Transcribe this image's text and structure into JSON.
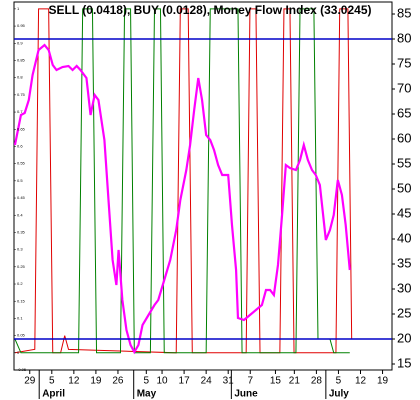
{
  "chart_data": {
    "type": "line",
    "title": "SELL (0.0418), BUY (0.0128), Money Flow Index (33.0245)",
    "xlim": [
      -5,
      115
    ],
    "xticks": [
      {
        "value": 0,
        "label": "29"
      },
      {
        "value": 7,
        "label": "5"
      },
      {
        "value": 14,
        "label": "12"
      },
      {
        "value": 21,
        "label": "19"
      },
      {
        "value": 28,
        "label": "26"
      },
      {
        "value": 37,
        "label": "5"
      },
      {
        "value": 42,
        "label": "10"
      },
      {
        "value": 49,
        "label": "17"
      },
      {
        "value": 56,
        "label": "24"
      },
      {
        "value": 63,
        "label": "31"
      },
      {
        "value": 70,
        "label": "7"
      },
      {
        "value": 78,
        "label": "15"
      },
      {
        "value": 84,
        "label": "21"
      },
      {
        "value": 91,
        "label": "28"
      },
      {
        "value": 98,
        "label": "5"
      },
      {
        "value": 105,
        "label": "12"
      },
      {
        "value": 112,
        "label": "19"
      }
    ],
    "months": [
      {
        "value": 3,
        "label": "April"
      },
      {
        "value": 33,
        "label": "May"
      },
      {
        "value": 64,
        "label": "June"
      },
      {
        "value": 94,
        "label": "July"
      }
    ],
    "ylim": [
      -0.05,
      1.02
    ],
    "yticks": [
      -0.05,
      0,
      0.05,
      0.1,
      0.15,
      0.2,
      0.25,
      0.3,
      0.35,
      0.4,
      0.45,
      0.5,
      0.55,
      0.6,
      0.65,
      0.7,
      0.75,
      0.8,
      0.85,
      0.9,
      0.95,
      1
    ],
    "y2lim": [
      13.8,
      87.4
    ],
    "y2ticks": [
      15,
      20,
      25,
      30,
      35,
      40,
      45,
      50,
      55,
      60,
      65,
      70,
      75,
      80,
      85
    ],
    "reference_lines": [
      {
        "value": 80,
        "axis": "y2",
        "color": "#0000c8"
      },
      {
        "value": 20,
        "axis": "y2",
        "color": "#0000c8"
      }
    ],
    "series": [
      {
        "color": "#e00000",
        "axis": "y",
        "x": [
          -4.7,
          1.6,
          2.8,
          6.0,
          7.3,
          9.8,
          11.1,
          12.3,
          46.5,
          47.8,
          50.3,
          51.6,
          68.7,
          69.9,
          71.8,
          73.1,
          79.4,
          80.7,
          82.6,
          83.9,
          97.2,
          98.4,
          101,
          102.2
        ],
        "values": [
          0,
          0.01,
          1,
          1,
          0,
          0,
          0.05,
          0.01,
          0,
          1,
          1,
          0,
          0,
          1,
          1,
          0,
          0,
          1,
          1,
          0,
          0,
          1,
          1,
          0.04
        ]
      },
      {
        "color": "#008000",
        "axis": "y",
        "x": [
          -4.7,
          -2.8,
          15.5,
          16.8,
          19.9,
          21.2,
          28.8,
          30.1,
          32,
          33.2,
          38.3,
          39.6,
          41.5,
          42.7,
          56,
          57.3,
          66.1,
          67.4,
          84.5,
          85.8,
          90.2,
          91.5,
          95.3,
          96.5,
          101.6
        ],
        "values": [
          0.04,
          0,
          0,
          1,
          1,
          0,
          0,
          1,
          1,
          0,
          0,
          1,
          1,
          0,
          0,
          1,
          1,
          0,
          0,
          1,
          1,
          0.04,
          0.04,
          0,
          0
        ]
      },
      {
        "color": "#ff00ff",
        "axis": "y2",
        "x": [
          -4.7,
          -2.8,
          -1.6,
          -0.3,
          0.9,
          2.8,
          4.7,
          6.0,
          7.3,
          8.5,
          10.4,
          12.3,
          13.6,
          14.9,
          16.1,
          18.0,
          19.3,
          20.6,
          21.8,
          23.7,
          25.0,
          26.3,
          27.5,
          28.2,
          29.4,
          30.7,
          32.0,
          33.2,
          34.5,
          35.8,
          37.7,
          39.6,
          40.8,
          42.7,
          44.6,
          46.5,
          47.8,
          49.7,
          50.9,
          52.2,
          53.5,
          54.7,
          56.0,
          57.3,
          58.5,
          59.8,
          61.1,
          63.0,
          64.2,
          65.5,
          66.1,
          68.0,
          69.9,
          71.8,
          73.7,
          75.0,
          76.3,
          77.5,
          78.8,
          80.1,
          81.3,
          82.6,
          84.5,
          85.8,
          87.0,
          88.3,
          89.6,
          90.8,
          92.1,
          94.0,
          95.3,
          96.5,
          97.8,
          99.1,
          100.3,
          101.6
        ],
        "values": [
          58.8,
          64.8,
          65.2,
          67.8,
          72.8,
          77.8,
          78.8,
          77.8,
          74.8,
          73.8,
          74.4,
          74.6,
          73.8,
          74.6,
          73.8,
          72.2,
          64.8,
          68.8,
          67.8,
          59.8,
          47.8,
          35.8,
          30.8,
          37.8,
          27.8,
          21.8,
          18.8,
          17.4,
          18.8,
          22.8,
          24.8,
          26.8,
          27.8,
          31.8,
          35.8,
          41.8,
          47.8,
          53.8,
          58.8,
          65.8,
          72.2,
          67.8,
          60.8,
          59.8,
          57.8,
          54.8,
          52.8,
          52.8,
          42.8,
          33.8,
          24.2,
          23.8,
          24.8,
          25.8,
          26.8,
          29.8,
          29.8,
          28.8,
          34.8,
          44.8,
          54.8,
          54.2,
          53.8,
          55.8,
          58.8,
          55.8,
          53.8,
          52.8,
          50.8,
          39.8,
          41.8,
          44.8,
          51.8,
          48.8,
          42.8,
          33.8
        ]
      }
    ]
  }
}
